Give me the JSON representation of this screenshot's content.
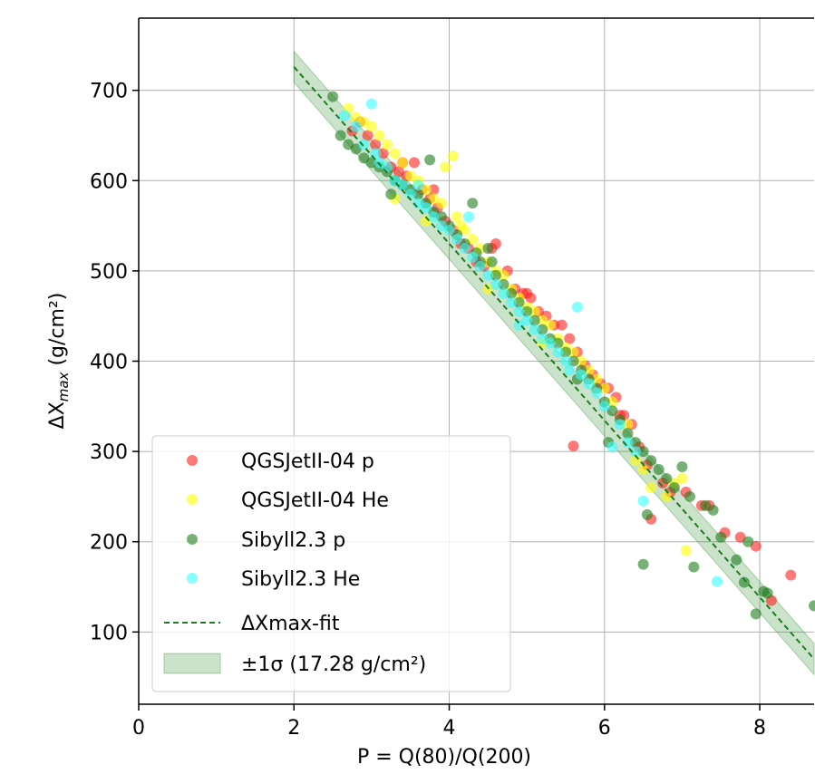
{
  "chart_data": {
    "type": "scatter",
    "xlabel": "P = Q(80)/Q(200)",
    "ylabel_main": "ΔX",
    "ylabel_sub": "max",
    "ylabel_unit": " (g/cm²)",
    "xlim": [
      0,
      8.7
    ],
    "ylim": [
      20,
      780
    ],
    "xticks": [
      0,
      2,
      4,
      6,
      8
    ],
    "yticks": [
      100,
      200,
      300,
      400,
      500,
      600,
      700
    ],
    "grid": true,
    "legend_position": "lower-left",
    "series": [
      {
        "name": "QGSJetII-04 p",
        "color": "#ff2020",
        "points": [
          [
            2.75,
            655
          ],
          [
            2.85,
            665
          ],
          [
            2.95,
            650
          ],
          [
            3.05,
            640
          ],
          [
            3.15,
            630
          ],
          [
            3.25,
            615
          ],
          [
            3.35,
            610
          ],
          [
            3.45,
            605
          ],
          [
            3.55,
            620
          ],
          [
            3.65,
            590
          ],
          [
            3.75,
            580
          ],
          [
            3.85,
            570
          ],
          [
            3.95,
            555
          ],
          [
            4.05,
            545
          ],
          [
            4.15,
            530
          ],
          [
            4.25,
            525
          ],
          [
            4.35,
            510
          ],
          [
            4.45,
            505
          ],
          [
            4.55,
            525
          ],
          [
            4.6,
            530
          ],
          [
            4.75,
            500
          ],
          [
            4.85,
            480
          ],
          [
            4.95,
            475
          ],
          [
            5.05,
            470
          ],
          [
            5.15,
            455
          ],
          [
            5.25,
            450
          ],
          [
            5.35,
            440
          ],
          [
            5.45,
            440
          ],
          [
            5.55,
            425
          ],
          [
            5.65,
            410
          ],
          [
            5.75,
            395
          ],
          [
            5.85,
            385
          ],
          [
            5.95,
            375
          ],
          [
            6.05,
            370
          ],
          [
            6.15,
            360
          ],
          [
            6.25,
            340
          ],
          [
            6.35,
            330
          ],
          [
            6.45,
            305
          ],
          [
            6.55,
            285
          ],
          [
            6.6,
            225
          ],
          [
            6.75,
            265
          ],
          [
            6.85,
            255
          ],
          [
            7.05,
            255
          ],
          [
            7.25,
            240
          ],
          [
            7.35,
            240
          ],
          [
            7.55,
            210
          ],
          [
            7.75,
            205
          ],
          [
            7.95,
            195
          ],
          [
            8.15,
            135
          ],
          [
            8.4,
            163
          ],
          [
            3.4,
            620
          ],
          [
            3.8,
            590
          ],
          [
            5.0,
            475
          ],
          [
            5.6,
            306
          ],
          [
            6.2,
            340
          ]
        ]
      },
      {
        "name": "QGSJetII-04 He",
        "color": "#ffff00",
        "points": [
          [
            2.7,
            680
          ],
          [
            2.8,
            670
          ],
          [
            2.9,
            665
          ],
          [
            3.0,
            660
          ],
          [
            3.1,
            650
          ],
          [
            3.2,
            640
          ],
          [
            3.3,
            630
          ],
          [
            3.4,
            620
          ],
          [
            3.5,
            605
          ],
          [
            3.6,
            600
          ],
          [
            3.7,
            590
          ],
          [
            3.8,
            580
          ],
          [
            3.9,
            575
          ],
          [
            3.95,
            615
          ],
          [
            4.05,
            627
          ],
          [
            4.1,
            560
          ],
          [
            4.2,
            545
          ],
          [
            4.3,
            535
          ],
          [
            4.4,
            525
          ],
          [
            4.5,
            510
          ],
          [
            4.6,
            500
          ],
          [
            4.7,
            495
          ],
          [
            4.8,
            480
          ],
          [
            4.9,
            470
          ],
          [
            5.0,
            460
          ],
          [
            5.1,
            455
          ],
          [
            5.2,
            445
          ],
          [
            5.3,
            440
          ],
          [
            5.4,
            425
          ],
          [
            5.5,
            415
          ],
          [
            5.6,
            410
          ],
          [
            5.7,
            400
          ],
          [
            5.8,
            390
          ],
          [
            5.9,
            380
          ],
          [
            6.0,
            370
          ],
          [
            6.1,
            355
          ],
          [
            6.3,
            330
          ],
          [
            6.4,
            290
          ],
          [
            6.5,
            280
          ],
          [
            6.6,
            260
          ],
          [
            6.8,
            250
          ],
          [
            7.0,
            270
          ],
          [
            7.05,
            190
          ],
          [
            3.3,
            580
          ],
          [
            3.7,
            555
          ],
          [
            4.15,
            550
          ],
          [
            4.5,
            480
          ],
          [
            5.2,
            420
          ],
          [
            6.9,
            265
          ]
        ]
      },
      {
        "name": "Sibyll2.3 p",
        "color": "#1e7d1e",
        "points": [
          [
            2.5,
            693
          ],
          [
            2.6,
            650
          ],
          [
            2.7,
            640
          ],
          [
            2.8,
            635
          ],
          [
            2.9,
            625
          ],
          [
            3.0,
            620
          ],
          [
            3.1,
            615
          ],
          [
            3.2,
            610
          ],
          [
            3.3,
            600
          ],
          [
            3.4,
            595
          ],
          [
            3.5,
            590
          ],
          [
            3.6,
            585
          ],
          [
            3.7,
            575
          ],
          [
            3.75,
            623
          ],
          [
            3.8,
            565
          ],
          [
            3.9,
            560
          ],
          [
            4.0,
            550
          ],
          [
            4.1,
            540
          ],
          [
            4.2,
            530
          ],
          [
            4.3,
            575
          ],
          [
            4.35,
            520
          ],
          [
            4.4,
            510
          ],
          [
            4.5,
            525
          ],
          [
            4.6,
            495
          ],
          [
            4.7,
            485
          ],
          [
            4.8,
            475
          ],
          [
            4.9,
            465
          ],
          [
            5.0,
            455
          ],
          [
            5.1,
            445
          ],
          [
            5.2,
            435
          ],
          [
            5.3,
            425
          ],
          [
            5.4,
            420
          ],
          [
            5.5,
            410
          ],
          [
            5.6,
            400
          ],
          [
            5.7,
            390
          ],
          [
            5.8,
            380
          ],
          [
            5.9,
            370
          ],
          [
            6.0,
            355
          ],
          [
            6.1,
            345
          ],
          [
            6.2,
            335
          ],
          [
            6.3,
            320
          ],
          [
            6.4,
            310
          ],
          [
            6.5,
            300
          ],
          [
            6.5,
            175
          ],
          [
            6.6,
            290
          ],
          [
            6.7,
            280
          ],
          [
            6.8,
            270
          ],
          [
            6.9,
            260
          ],
          [
            7.0,
            283
          ],
          [
            7.1,
            250
          ],
          [
            7.15,
            172
          ],
          [
            7.3,
            240
          ],
          [
            7.4,
            235
          ],
          [
            7.5,
            205
          ],
          [
            7.7,
            180
          ],
          [
            7.8,
            155
          ],
          [
            7.85,
            200
          ],
          [
            7.95,
            120
          ],
          [
            8.05,
            145
          ],
          [
            8.1,
            143
          ],
          [
            8.7,
            129
          ],
          [
            3.25,
            585
          ],
          [
            4.55,
            510
          ],
          [
            5.65,
            380
          ],
          [
            6.05,
            310
          ],
          [
            6.55,
            230
          ]
        ]
      },
      {
        "name": "Sibyll2.3 He",
        "color": "#33ffff",
        "points": [
          [
            2.65,
            672
          ],
          [
            2.8,
            660
          ],
          [
            2.9,
            640
          ],
          [
            3.0,
            685
          ],
          [
            3.05,
            630
          ],
          [
            3.1,
            620
          ],
          [
            3.2,
            615
          ],
          [
            3.3,
            600
          ],
          [
            3.4,
            595
          ],
          [
            3.5,
            585
          ],
          [
            3.6,
            575
          ],
          [
            3.7,
            570
          ],
          [
            3.8,
            560
          ],
          [
            3.9,
            550
          ],
          [
            4.0,
            545
          ],
          [
            4.1,
            535
          ],
          [
            4.2,
            525
          ],
          [
            4.3,
            515
          ],
          [
            4.4,
            505
          ],
          [
            4.5,
            495
          ],
          [
            4.6,
            485
          ],
          [
            4.7,
            475
          ],
          [
            4.8,
            465
          ],
          [
            4.9,
            455
          ],
          [
            5.0,
            445
          ],
          [
            5.1,
            435
          ],
          [
            5.2,
            425
          ],
          [
            5.3,
            420
          ],
          [
            5.4,
            410
          ],
          [
            5.5,
            400
          ],
          [
            5.65,
            460
          ],
          [
            5.7,
            385
          ],
          [
            5.8,
            375
          ],
          [
            5.9,
            365
          ],
          [
            6.0,
            350
          ],
          [
            6.1,
            305
          ],
          [
            6.2,
            330
          ],
          [
            6.4,
            300
          ],
          [
            6.5,
            245
          ],
          [
            7.45,
            156
          ],
          [
            3.6,
            595
          ],
          [
            4.25,
            560
          ],
          [
            4.9,
            440
          ],
          [
            5.55,
            390
          ],
          [
            6.3,
            310
          ]
        ]
      }
    ],
    "fit": {
      "name": "ΔXmax-fit",
      "color": "#1e7d1e",
      "x": [
        2.0,
        8.7
      ],
      "y": [
        726,
        70
      ]
    },
    "band": {
      "name": "±1σ (17.28 g/cm²)",
      "color": "#2e8b2e",
      "sigma": 17.28
    }
  }
}
